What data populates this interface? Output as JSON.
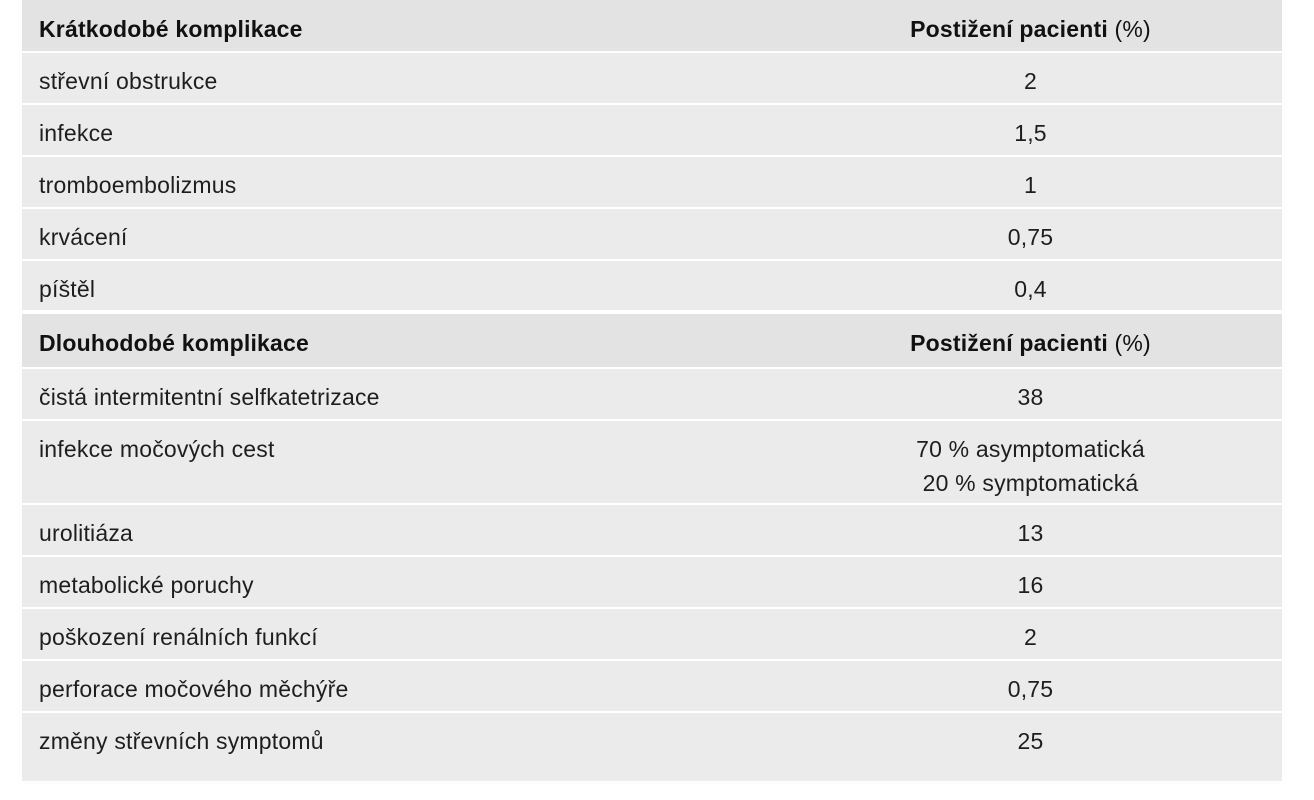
{
  "sections": [
    {
      "header": {
        "label": "Krátkodobé komplikace",
        "value_label": "Postižení pacienti",
        "value_unit": "(%)"
      },
      "rows": [
        {
          "label": "střevní obstrukce",
          "value": "2"
        },
        {
          "label": "infekce",
          "value": "1,5"
        },
        {
          "label": "tromboembolizmus",
          "value": "1"
        },
        {
          "label": "krvácení",
          "value": "0,75"
        },
        {
          "label": "píštěl",
          "value": "0,4"
        }
      ]
    },
    {
      "header": {
        "label": "Dlouhodobé komplikace",
        "value_label": "Postižení pacienti",
        "value_unit": "(%)"
      },
      "rows": [
        {
          "label": "čistá intermitentní selfkatetrizace",
          "value": "38"
        },
        {
          "label": "infekce močových cest",
          "value_line1": "70 % asymptomatická",
          "value_line2": "20 % symptomatická"
        },
        {
          "label": "urolitiáza",
          "value": "13"
        },
        {
          "label": "metabolické poruchy",
          "value": "16"
        },
        {
          "label": "poškození renálních funkcí",
          "value": "2"
        },
        {
          "label": "perforace močového měchýře",
          "value": "0,75"
        },
        {
          "label": "změny střevních symptomů",
          "value": "25"
        }
      ]
    }
  ]
}
